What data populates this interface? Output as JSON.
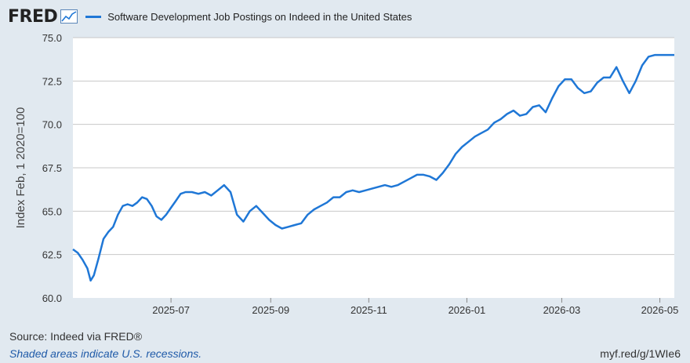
{
  "header": {
    "logo_text": "FRED",
    "logo_icon": "chart-line-icon",
    "legend_label": "Software Development Job Postings on Indeed in the United States"
  },
  "footer": {
    "source": "Source: Indeed via FRED®",
    "shaded": "Shaded areas indicate U.S. recessions.",
    "short_url": "myf.red/g/1WIe6"
  },
  "colors": {
    "line": "#1f77d6",
    "background": "#e1e9f0",
    "plot_bg": "#ffffff",
    "grid": "#c8c8c8"
  },
  "chart_data": {
    "type": "line",
    "title": "",
    "xlabel": "",
    "ylabel": "Index Feb, 1 2020=100",
    "ylim": [
      60.0,
      75.0
    ],
    "yticks": [
      "60.0",
      "62.5",
      "65.0",
      "67.5",
      "70.0",
      "72.5",
      "75.0"
    ],
    "xlim": [
      "2025-05-01",
      "2026-05-10"
    ],
    "xticks": [
      "2025-07",
      "2025-09",
      "2025-11",
      "2026-01",
      "2026-03",
      "2026-05"
    ],
    "grid": true,
    "series": [
      {
        "name": "Software Development Job Postings on Indeed in the United States",
        "x": [
          "2025-05-01",
          "2025-05-04",
          "2025-05-07",
          "2025-05-10",
          "2025-05-12",
          "2025-05-14",
          "2025-05-17",
          "2025-05-20",
          "2025-05-23",
          "2025-05-26",
          "2025-05-29",
          "2025-06-01",
          "2025-06-04",
          "2025-06-07",
          "2025-06-10",
          "2025-06-13",
          "2025-06-16",
          "2025-06-19",
          "2025-06-22",
          "2025-06-25",
          "2025-06-28",
          "2025-07-01",
          "2025-07-04",
          "2025-07-07",
          "2025-07-10",
          "2025-07-14",
          "2025-07-18",
          "2025-07-22",
          "2025-07-26",
          "2025-07-30",
          "2025-08-03",
          "2025-08-07",
          "2025-08-11",
          "2025-08-15",
          "2025-08-19",
          "2025-08-23",
          "2025-08-27",
          "2025-08-31",
          "2025-09-04",
          "2025-09-08",
          "2025-09-12",
          "2025-09-16",
          "2025-09-20",
          "2025-09-24",
          "2025-09-28",
          "2025-10-02",
          "2025-10-06",
          "2025-10-10",
          "2025-10-14",
          "2025-10-18",
          "2025-10-22",
          "2025-10-26",
          "2025-10-30",
          "2025-11-03",
          "2025-11-07",
          "2025-11-11",
          "2025-11-15",
          "2025-11-19",
          "2025-11-23",
          "2025-11-27",
          "2025-12-01",
          "2025-12-05",
          "2025-12-09",
          "2025-12-13",
          "2025-12-17",
          "2025-12-21",
          "2025-12-25",
          "2025-12-29",
          "2026-01-02",
          "2026-01-06",
          "2026-01-10",
          "2026-01-14",
          "2026-01-18",
          "2026-01-22",
          "2026-01-26",
          "2026-01-30",
          "2026-02-03",
          "2026-02-07",
          "2026-02-11",
          "2026-02-15",
          "2026-02-19",
          "2026-02-23",
          "2026-02-27",
          "2026-03-03",
          "2026-03-07",
          "2026-03-11",
          "2026-03-15",
          "2026-03-19",
          "2026-03-23",
          "2026-03-27",
          "2026-03-31",
          "2026-04-04",
          "2026-04-08",
          "2026-04-12",
          "2026-04-16",
          "2026-04-20",
          "2026-04-24",
          "2026-04-28",
          "2026-05-02",
          "2026-05-06",
          "2026-05-10"
        ],
        "values": [
          62.8,
          62.6,
          62.2,
          61.7,
          61.0,
          61.3,
          62.3,
          63.4,
          63.8,
          64.1,
          64.8,
          65.3,
          65.4,
          65.3,
          65.5,
          65.8,
          65.7,
          65.3,
          64.7,
          64.5,
          64.8,
          65.2,
          65.6,
          66.0,
          66.1,
          66.1,
          66.0,
          66.1,
          65.9,
          66.2,
          66.5,
          66.1,
          64.8,
          64.4,
          65.0,
          65.3,
          64.9,
          64.5,
          64.2,
          64.0,
          64.1,
          64.2,
          64.3,
          64.8,
          65.1,
          65.3,
          65.5,
          65.8,
          65.8,
          66.1,
          66.2,
          66.1,
          66.2,
          66.3,
          66.4,
          66.5,
          66.4,
          66.5,
          66.7,
          66.9,
          67.1,
          67.1,
          67.0,
          66.8,
          67.2,
          67.7,
          68.3,
          68.7,
          69.0,
          69.3,
          69.5,
          69.7,
          70.1,
          70.3,
          70.6,
          70.8,
          70.5,
          70.6,
          71.0,
          71.1,
          70.7,
          71.5,
          72.2,
          72.6,
          72.6,
          72.1,
          71.8,
          71.9,
          72.4,
          72.7,
          72.7,
          73.3,
          72.5,
          71.8,
          72.5,
          73.4,
          73.9,
          74.0,
          74.0,
          74.0,
          74.0
        ]
      }
    ]
  }
}
